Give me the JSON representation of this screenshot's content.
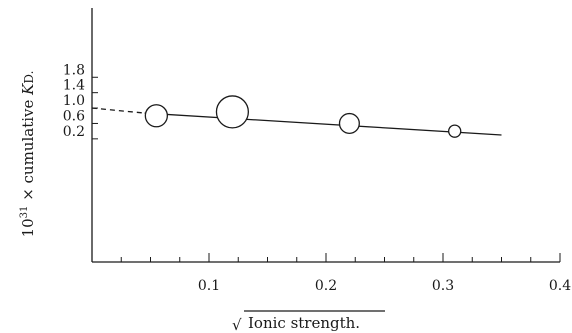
{
  "chart_data": {
    "type": "scatter",
    "xlabel": "Ionic strength.",
    "xlabel_prefix": "√",
    "ylabel_prefix": "10",
    "ylabel_exponent": "31",
    "ylabel_main": " × cumulative ",
    "ylabel_italic": "K",
    "ylabel_suffix": "D.",
    "xlim": [
      0,
      0.4
    ],
    "ylim": [
      -3.0,
      3.6
    ],
    "x_ticks": [
      {
        "value": 0.1,
        "label": "0.1"
      },
      {
        "value": 0.2,
        "label": "0.2"
      },
      {
        "value": 0.3,
        "label": "0.3"
      },
      {
        "value": 0.4,
        "label": "0.4"
      }
    ],
    "x_minor_step": 0.025,
    "y_ticks": [
      {
        "value": 0.2,
        "label": "0.2"
      },
      {
        "value": 0.6,
        "label": "0.6"
      },
      {
        "value": 1.0,
        "label": "1.0"
      },
      {
        "value": 1.4,
        "label": "1.4"
      },
      {
        "value": 1.8,
        "label": "1.8"
      }
    ],
    "points": [
      {
        "x": 0.055,
        "y": 0.8,
        "weight": 1.0
      },
      {
        "x": 0.12,
        "y": 0.9,
        "weight": 1.45
      },
      {
        "x": 0.22,
        "y": 0.6,
        "weight": 0.9
      },
      {
        "x": 0.31,
        "y": 0.4,
        "weight": 0.55
      }
    ],
    "fit_line": {
      "x": [
        0.045,
        0.35
      ],
      "y": [
        0.87,
        0.3
      ]
    },
    "fit_extrapolation": {
      "x": [
        0.0,
        0.045
      ],
      "y": [
        1.0,
        0.87
      ]
    }
  }
}
